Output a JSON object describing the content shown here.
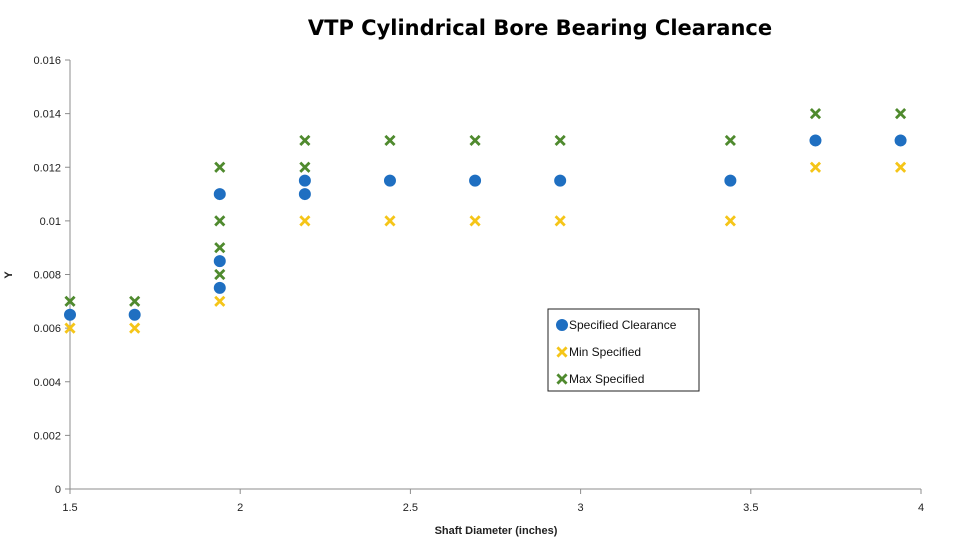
{
  "chart_data": {
    "type": "scatter",
    "title": "VTP Cylindrical Bore Bearing Clearance",
    "xlabel": "Shaft Diameter (inches)",
    "ylabel": "Y",
    "xlim": [
      1.5,
      4
    ],
    "ylim": [
      0,
      0.016
    ],
    "x_ticks": [
      "1.5",
      "2",
      "2.5",
      "3",
      "3.5",
      "4"
    ],
    "x_tick_values": [
      1.5,
      2,
      2.5,
      3,
      3.5,
      4
    ],
    "y_ticks": [
      "0",
      "0.002",
      "0.004",
      "0.006",
      "0.008",
      "0.01",
      "0.012",
      "0.014",
      "0.016"
    ],
    "y_tick_values": [
      0,
      0.002,
      0.004,
      0.006,
      0.008,
      0.01,
      0.012,
      0.014,
      0.016
    ],
    "grid": false,
    "legend_position": "center-right",
    "series": [
      {
        "name": "Specified Clearance",
        "marker": "circle",
        "color": "#1F6FC1",
        "points": [
          [
            1.5,
            0.0065
          ],
          [
            1.69,
            0.0065
          ],
          [
            1.94,
            0.0085
          ],
          [
            1.94,
            0.0075
          ],
          [
            1.94,
            0.011
          ],
          [
            2.19,
            0.0115
          ],
          [
            2.19,
            0.011
          ],
          [
            2.44,
            0.0115
          ],
          [
            2.69,
            0.0115
          ],
          [
            2.94,
            0.0115
          ],
          [
            3.44,
            0.0115
          ],
          [
            3.69,
            0.013
          ],
          [
            3.94,
            0.013
          ]
        ]
      },
      {
        "name": "Min Specified",
        "marker": "x",
        "color": "#F5C518",
        "points": [
          [
            1.5,
            0.006
          ],
          [
            1.69,
            0.006
          ],
          [
            1.94,
            0.007
          ],
          [
            2.19,
            0.01
          ],
          [
            2.44,
            0.01
          ],
          [
            2.69,
            0.01
          ],
          [
            2.94,
            0.01
          ],
          [
            3.44,
            0.01
          ],
          [
            3.69,
            0.012
          ],
          [
            3.94,
            0.012
          ]
        ]
      },
      {
        "name": "Max Specified",
        "marker": "x",
        "color": "#4F8A2E",
        "points": [
          [
            1.5,
            0.007
          ],
          [
            1.69,
            0.007
          ],
          [
            1.94,
            0.012
          ],
          [
            1.94,
            0.01
          ],
          [
            1.94,
            0.009
          ],
          [
            1.94,
            0.008
          ],
          [
            2.19,
            0.013
          ],
          [
            2.19,
            0.012
          ],
          [
            2.44,
            0.013
          ],
          [
            2.69,
            0.013
          ],
          [
            2.94,
            0.013
          ],
          [
            3.44,
            0.013
          ],
          [
            3.69,
            0.014
          ],
          [
            3.94,
            0.014
          ]
        ]
      }
    ]
  }
}
